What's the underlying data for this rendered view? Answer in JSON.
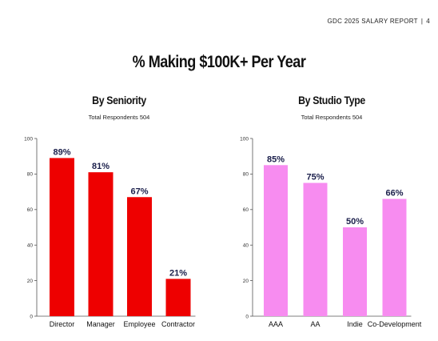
{
  "header": {
    "report": "GDC 2025 SALARY REPORT",
    "separator": "|",
    "page": "4"
  },
  "main_title": "% Making $100K+ Per Year",
  "chart_data": [
    {
      "type": "bar",
      "title": "By Seniority",
      "subtitle": "Total Respondents 504",
      "categories": [
        "Director",
        "Manager",
        "Employee",
        "Contractor"
      ],
      "values": [
        89,
        81,
        67,
        21
      ],
      "value_labels": [
        "89%",
        "81%",
        "67%",
        "21%"
      ],
      "ylim": [
        0,
        100
      ],
      "yticks": [
        0,
        20,
        40,
        60,
        80,
        100
      ],
      "bar_color": "#ee0000",
      "grid": false
    },
    {
      "type": "bar",
      "title": "By Studio Type",
      "subtitle": "Total Respondents 504",
      "categories": [
        "AAA",
        "AA",
        "Indie",
        "Co-Development"
      ],
      "values": [
        85,
        75,
        50,
        66
      ],
      "value_labels": [
        "85%",
        "75%",
        "50%",
        "66%"
      ],
      "ylim": [
        0,
        100
      ],
      "yticks": [
        0,
        20,
        40,
        60,
        80,
        100
      ],
      "bar_color": "#f78cf0",
      "grid": false
    }
  ]
}
